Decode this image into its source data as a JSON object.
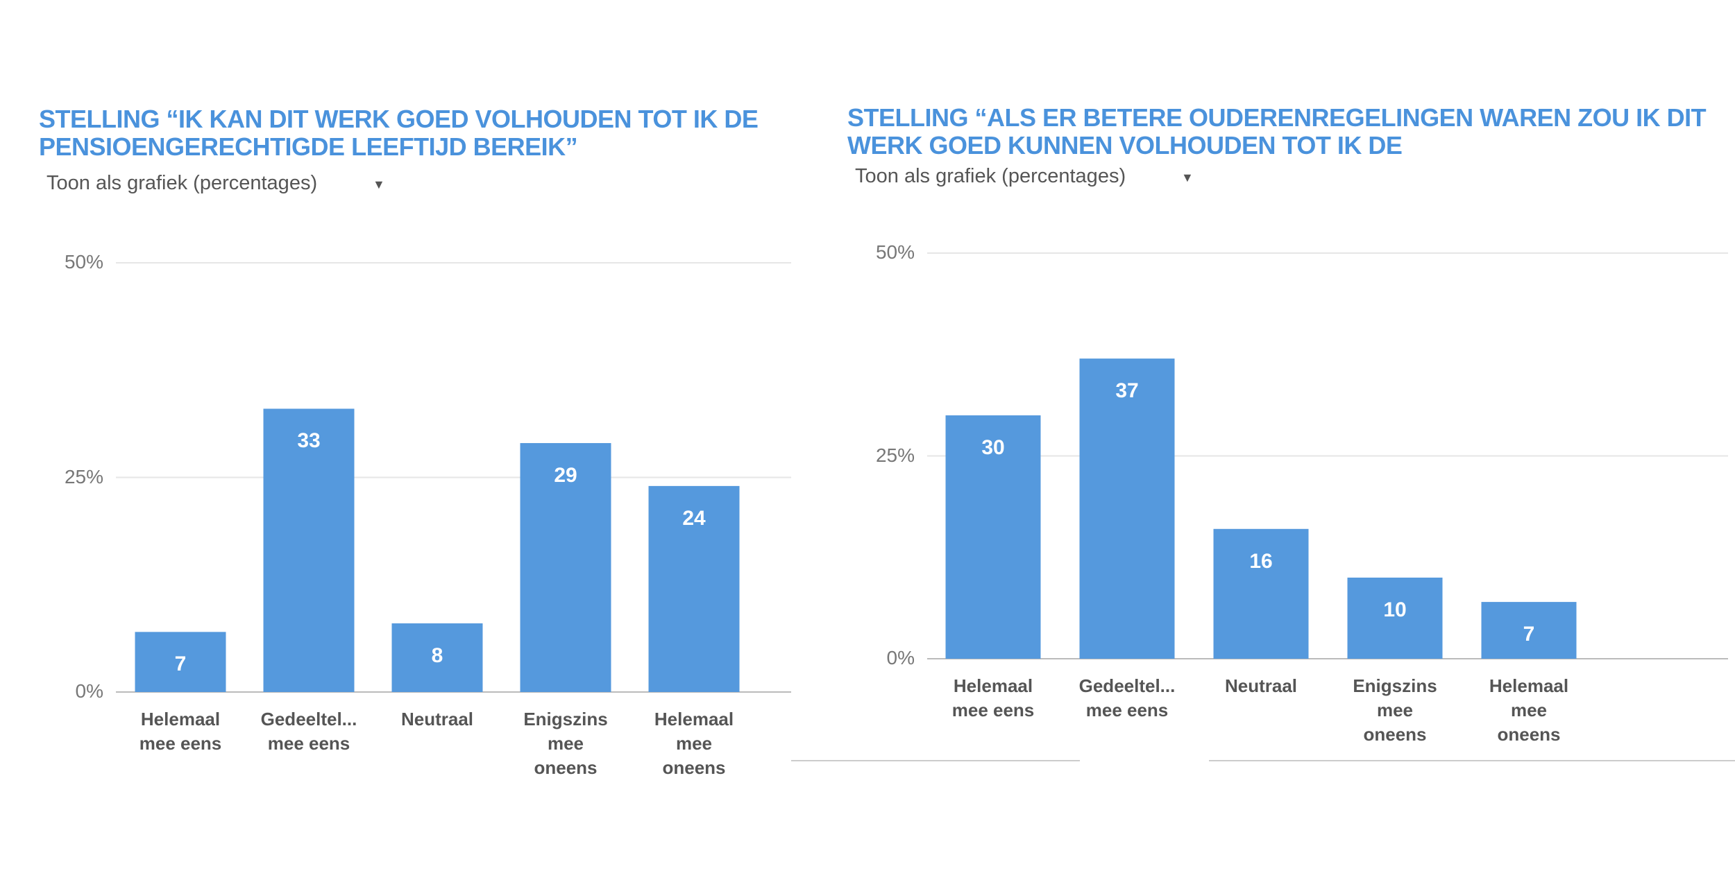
{
  "chart_data": [
    {
      "type": "bar",
      "title": "STELLING “IK KAN DIT WERK GOED VOLHOUDEN TOT IK DE PENSIOENGERECHTIGDE LEEFTIJD BEREIK”",
      "subtitle": "Toon als grafiek (percentages)",
      "dropdown": "▼",
      "categories": [
        "Helemaal mee eens",
        "Gedeeltel... mee eens",
        "Neutraal",
        "Enigszins mee oneens",
        "Helemaal mee oneens"
      ],
      "values": [
        7,
        33,
        8,
        29,
        24
      ],
      "color": "#5599dd",
      "ylim": [
        0,
        50
      ],
      "yticks": [
        {
          "value": 0,
          "label": "0%"
        },
        {
          "value": 25,
          "label": "25%"
        },
        {
          "value": 50,
          "label": "50%"
        }
      ],
      "grid": true
    },
    {
      "type": "bar",
      "title": "STELLING “ALS ER BETERE OUDERENREGELINGEN WAREN ZOU IK DIT WERK GOED KUNNEN VOLHOUDEN TOT IK DE",
      "subtitle": "Toon als grafiek (percentages)",
      "dropdown": "▼",
      "categories": [
        "Helemaal mee eens",
        "Gedeeltel... mee eens",
        "Neutraal",
        "Enigszins mee oneens",
        "Helemaal mee oneens"
      ],
      "values": [
        30,
        37,
        16,
        10,
        7
      ],
      "color": "#5599dd",
      "ylim": [
        0,
        50
      ],
      "yticks": [
        {
          "value": 0,
          "label": "0%"
        },
        {
          "value": 25,
          "label": "25%"
        },
        {
          "value": 50,
          "label": "50%"
        }
      ],
      "grid": true
    }
  ]
}
